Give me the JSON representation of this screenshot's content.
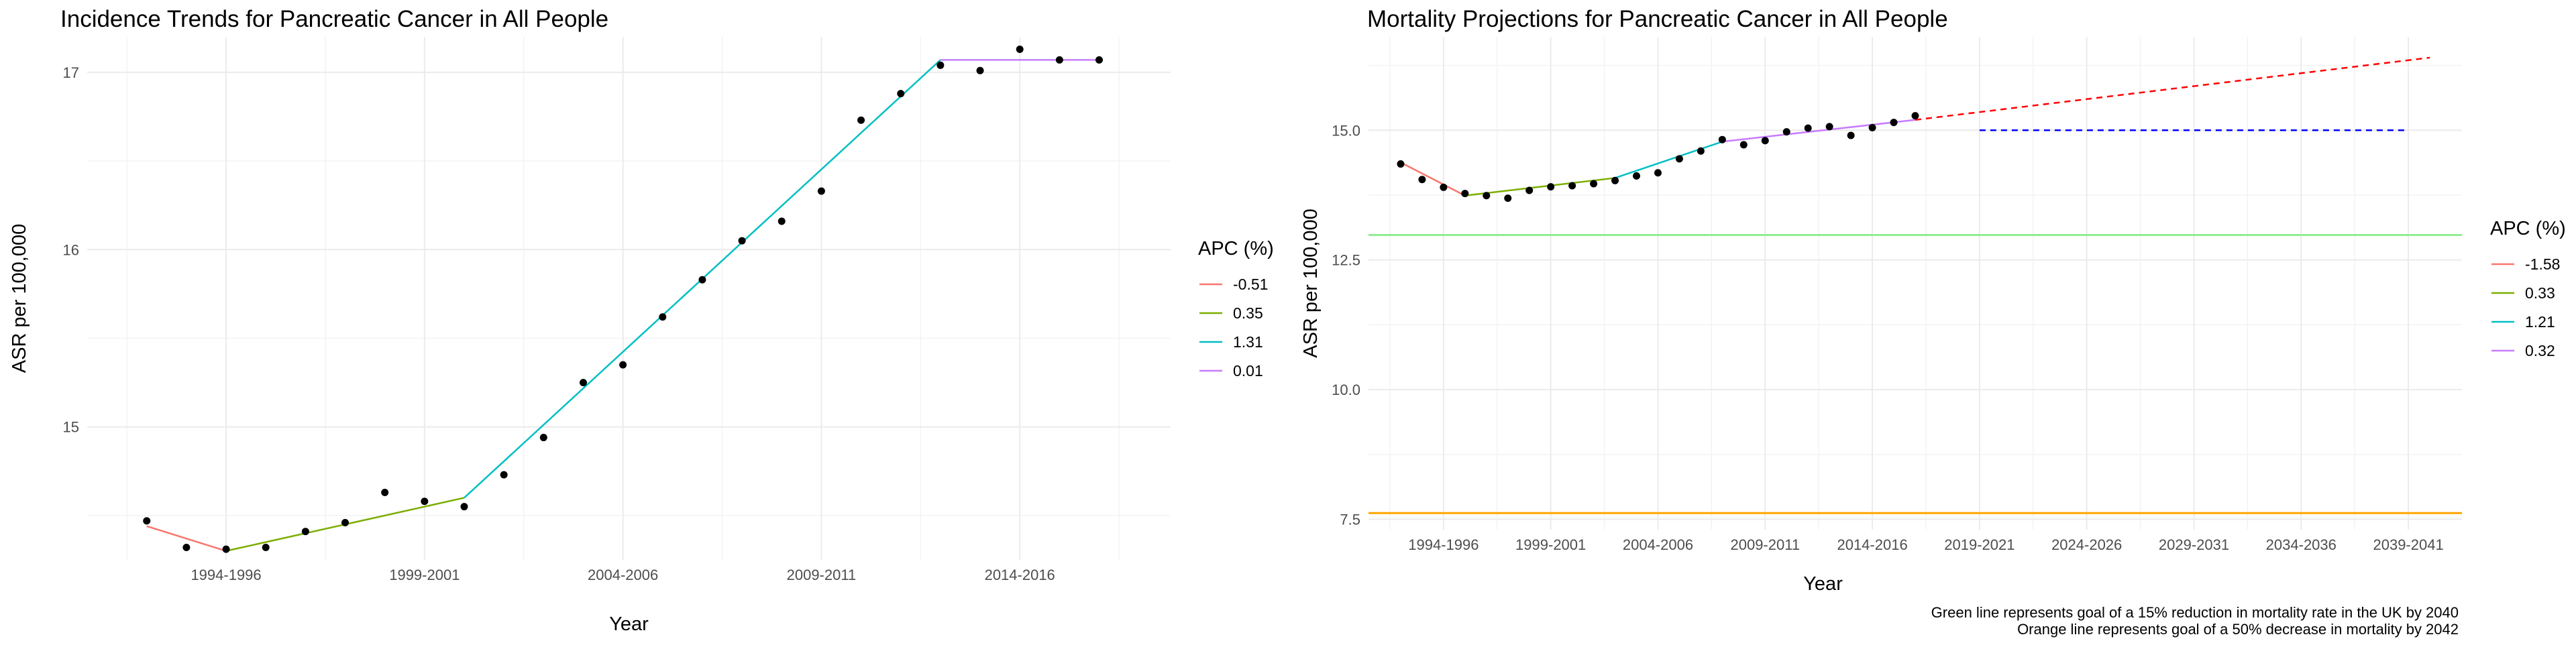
{
  "chart_data": [
    {
      "type": "line",
      "title": "Incidence Trends for Pancreatic Cancer in All People",
      "xlabel": "Year",
      "ylabel": "ASR per 100,000",
      "xlim": [
        1991.5,
        2018.8
      ],
      "ylim": [
        14.25,
        17.2
      ],
      "x_ticks": [
        {
          "x": 1995,
          "label": "1994-1996"
        },
        {
          "x": 2000,
          "label": "1999-2001"
        },
        {
          "x": 2005,
          "label": "2004-2006"
        },
        {
          "x": 2010,
          "label": "2009-2011"
        },
        {
          "x": 2015,
          "label": "2014-2016"
        }
      ],
      "y_ticks": [
        15,
        16,
        17
      ],
      "grid": true,
      "legend": {
        "title": "APC (%)",
        "position": "right"
      },
      "observed": {
        "x": [
          1993,
          1994,
          1995,
          1996,
          1997,
          1998,
          1999,
          2000,
          2001,
          2002,
          2003,
          2004,
          2005,
          2006,
          2007,
          2008,
          2009,
          2010,
          2011,
          2012,
          2013,
          2014,
          2015,
          2016,
          2017
        ],
        "y": [
          14.47,
          14.32,
          14.31,
          14.32,
          14.41,
          14.46,
          14.63,
          14.58,
          14.55,
          14.73,
          14.94,
          15.25,
          15.35,
          15.62,
          15.83,
          16.05,
          16.16,
          16.33,
          16.73,
          16.88,
          17.04,
          17.01,
          17.13,
          17.07,
          17.07
        ]
      },
      "series": [
        {
          "name": "-0.51",
          "color": "#F8766D",
          "x": [
            1993,
            1995
          ],
          "y": [
            14.44,
            14.3
          ]
        },
        {
          "name": "0.35",
          "color": "#7CAE00",
          "x": [
            1995,
            2001
          ],
          "y": [
            14.3,
            14.6
          ]
        },
        {
          "name": "1.31",
          "color": "#00BFC4",
          "x": [
            2001,
            2013
          ],
          "y": [
            14.6,
            17.07
          ]
        },
        {
          "name": "0.01",
          "color": "#C77CFF",
          "x": [
            2013,
            2017
          ],
          "y": [
            17.07,
            17.07
          ]
        }
      ]
    },
    {
      "type": "line",
      "title": "Mortality Projections for Pancreatic Cancer in All People",
      "xlabel": "Year",
      "ylabel": "ASR per 100,000",
      "xlim": [
        1991.5,
        2042.5
      ],
      "ylim": [
        7.3,
        16.8
      ],
      "x_ticks": [
        {
          "x": 1995,
          "label": "1994-1996"
        },
        {
          "x": 2000,
          "label": "1999-2001"
        },
        {
          "x": 2005,
          "label": "2004-2006"
        },
        {
          "x": 2010,
          "label": "2009-2011"
        },
        {
          "x": 2015,
          "label": "2014-2016"
        },
        {
          "x": 2020,
          "label": "2019-2021"
        },
        {
          "x": 2025,
          "label": "2024-2026"
        },
        {
          "x": 2030,
          "label": "2029-2031"
        },
        {
          "x": 2035,
          "label": "2034-2036"
        },
        {
          "x": 2040,
          "label": "2039-2041"
        }
      ],
      "y_ticks": [
        7.5,
        10.0,
        12.5,
        15.0
      ],
      "grid": true,
      "legend": {
        "title": "APC (%)",
        "position": "right"
      },
      "observed": {
        "x": [
          1993,
          1994,
          1995,
          1996,
          1997,
          1998,
          1999,
          2000,
          2001,
          2002,
          2003,
          2004,
          2005,
          2006,
          2007,
          2008,
          2009,
          2010,
          2011,
          2012,
          2013,
          2014,
          2015,
          2016,
          2017
        ],
        "y": [
          14.35,
          14.05,
          13.9,
          13.78,
          13.74,
          13.69,
          13.84,
          13.91,
          13.93,
          13.97,
          14.03,
          14.12,
          14.18,
          14.45,
          14.6,
          14.82,
          14.72,
          14.8,
          14.97,
          15.04,
          15.07,
          14.9,
          15.05,
          15.15,
          15.28
        ]
      },
      "series": [
        {
          "name": "-1.58",
          "color": "#F8766D",
          "x": [
            1993,
            1996
          ],
          "y": [
            14.38,
            13.74
          ]
        },
        {
          "name": "0.33",
          "color": "#7CAE00",
          "x": [
            1996,
            2003
          ],
          "y": [
            13.74,
            14.08
          ]
        },
        {
          "name": "1.21",
          "color": "#00BFC4",
          "x": [
            2003,
            2008
          ],
          "y": [
            14.08,
            14.78
          ]
        },
        {
          "name": "0.32",
          "color": "#C77CFF",
          "x": [
            2008,
            2017
          ],
          "y": [
            14.78,
            15.2
          ]
        }
      ],
      "projection": {
        "color": "#FF0000",
        "x": [
          2017,
          2041
        ],
        "y": [
          15.2,
          16.4
        ]
      },
      "projection_flat": {
        "color": "#0000FF",
        "x": [
          2020,
          2040
        ],
        "y": [
          15.0,
          15.0
        ]
      },
      "reference_lines": [
        {
          "y": 12.98,
          "color": "#90EE90"
        },
        {
          "y": 7.62,
          "color": "#FFA500"
        }
      ],
      "captions": [
        "Green line represents goal of a 15% reduction in mortality rate in the UK by 2040",
        "Orange line represents goal of a 50% decrease in mortality by 2042"
      ]
    }
  ]
}
